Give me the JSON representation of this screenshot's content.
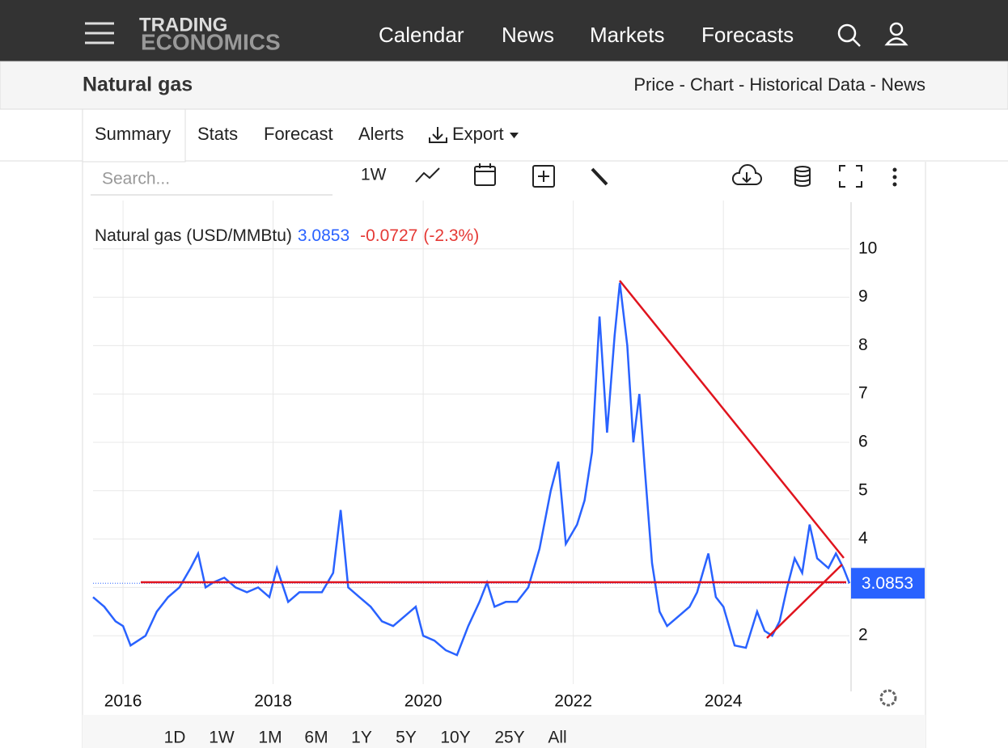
{
  "header": {
    "logo_top": "TRADING",
    "logo_bottom": "ECONOMICS",
    "nav": [
      "Calendar",
      "News",
      "Markets",
      "Forecasts"
    ]
  },
  "page": {
    "title": "Natural gas",
    "links": "Price - Chart - Historical Data - News"
  },
  "tabs": [
    "Summary",
    "Stats",
    "Forecast",
    "Alerts",
    "Export"
  ],
  "toolbar": {
    "search_placeholder": "Search...",
    "interval": "1W"
  },
  "chart_data": {
    "type": "line",
    "title": "Natural gas (USD/MMBtu)",
    "last_value": 3.0853,
    "change": -0.0727,
    "change_label": "(-2.3%)",
    "x": [
      2015.6,
      2015.75,
      2015.9,
      2016.0,
      2016.1,
      2016.2,
      2016.3,
      2016.45,
      2016.6,
      2016.75,
      2016.9,
      2017.0,
      2017.1,
      2017.2,
      2017.35,
      2017.5,
      2017.65,
      2017.8,
      2017.95,
      2018.05,
      2018.2,
      2018.35,
      2018.5,
      2018.65,
      2018.8,
      2018.9,
      2019.0,
      2019.15,
      2019.3,
      2019.45,
      2019.6,
      2019.75,
      2019.9,
      2020.0,
      2020.15,
      2020.3,
      2020.45,
      2020.6,
      2020.75,
      2020.85,
      2020.95,
      2021.1,
      2021.25,
      2021.4,
      2021.55,
      2021.7,
      2021.8,
      2021.9,
      2022.05,
      2022.15,
      2022.25,
      2022.35,
      2022.45,
      2022.55,
      2022.62,
      2022.72,
      2022.8,
      2022.88,
      2022.95,
      2023.05,
      2023.15,
      2023.25,
      2023.4,
      2023.55,
      2023.65,
      2023.8,
      2023.9,
      2024.0,
      2024.15,
      2024.3,
      2024.45,
      2024.55,
      2024.65,
      2024.75,
      2024.85,
      2024.95,
      2025.05,
      2025.15,
      2025.25,
      2025.4,
      2025.5,
      2025.6,
      2025.68
    ],
    "series": [
      {
        "name": "Natural gas (USD/MMBtu)",
        "color": "#2962ff",
        "values": [
          2.8,
          2.6,
          2.3,
          2.2,
          1.8,
          1.9,
          2.0,
          2.5,
          2.8,
          3.0,
          3.4,
          3.7,
          3.0,
          3.1,
          3.2,
          3.0,
          2.9,
          3.0,
          2.8,
          3.4,
          2.7,
          2.9,
          2.9,
          2.9,
          3.3,
          4.6,
          3.0,
          2.8,
          2.6,
          2.3,
          2.2,
          2.4,
          2.6,
          2.0,
          1.9,
          1.7,
          1.6,
          2.2,
          2.7,
          3.1,
          2.6,
          2.7,
          2.7,
          3.0,
          3.8,
          5.0,
          5.6,
          3.9,
          4.3,
          4.8,
          5.8,
          8.6,
          6.2,
          8.2,
          9.3,
          8.0,
          6.0,
          7.0,
          5.5,
          3.5,
          2.5,
          2.2,
          2.4,
          2.6,
          2.9,
          3.7,
          2.8,
          2.6,
          1.8,
          1.75,
          2.5,
          2.1,
          2.0,
          2.3,
          3.0,
          3.6,
          3.3,
          4.3,
          3.6,
          3.4,
          3.7,
          3.4,
          3.0853
        ]
      }
    ],
    "xlim": [
      2015.6,
      2025.68
    ],
    "xticks": [
      2016,
      2018,
      2020,
      2022,
      2024
    ],
    "ylim": [
      1,
      11
    ],
    "yticks": [
      2,
      3,
      4,
      5,
      6,
      7,
      8,
      9,
      10
    ],
    "grid": true
  },
  "ranges": [
    "1D",
    "1W",
    "1M",
    "6M",
    "1Y",
    "5Y",
    "10Y",
    "25Y",
    "All"
  ],
  "active_range": "10Y"
}
